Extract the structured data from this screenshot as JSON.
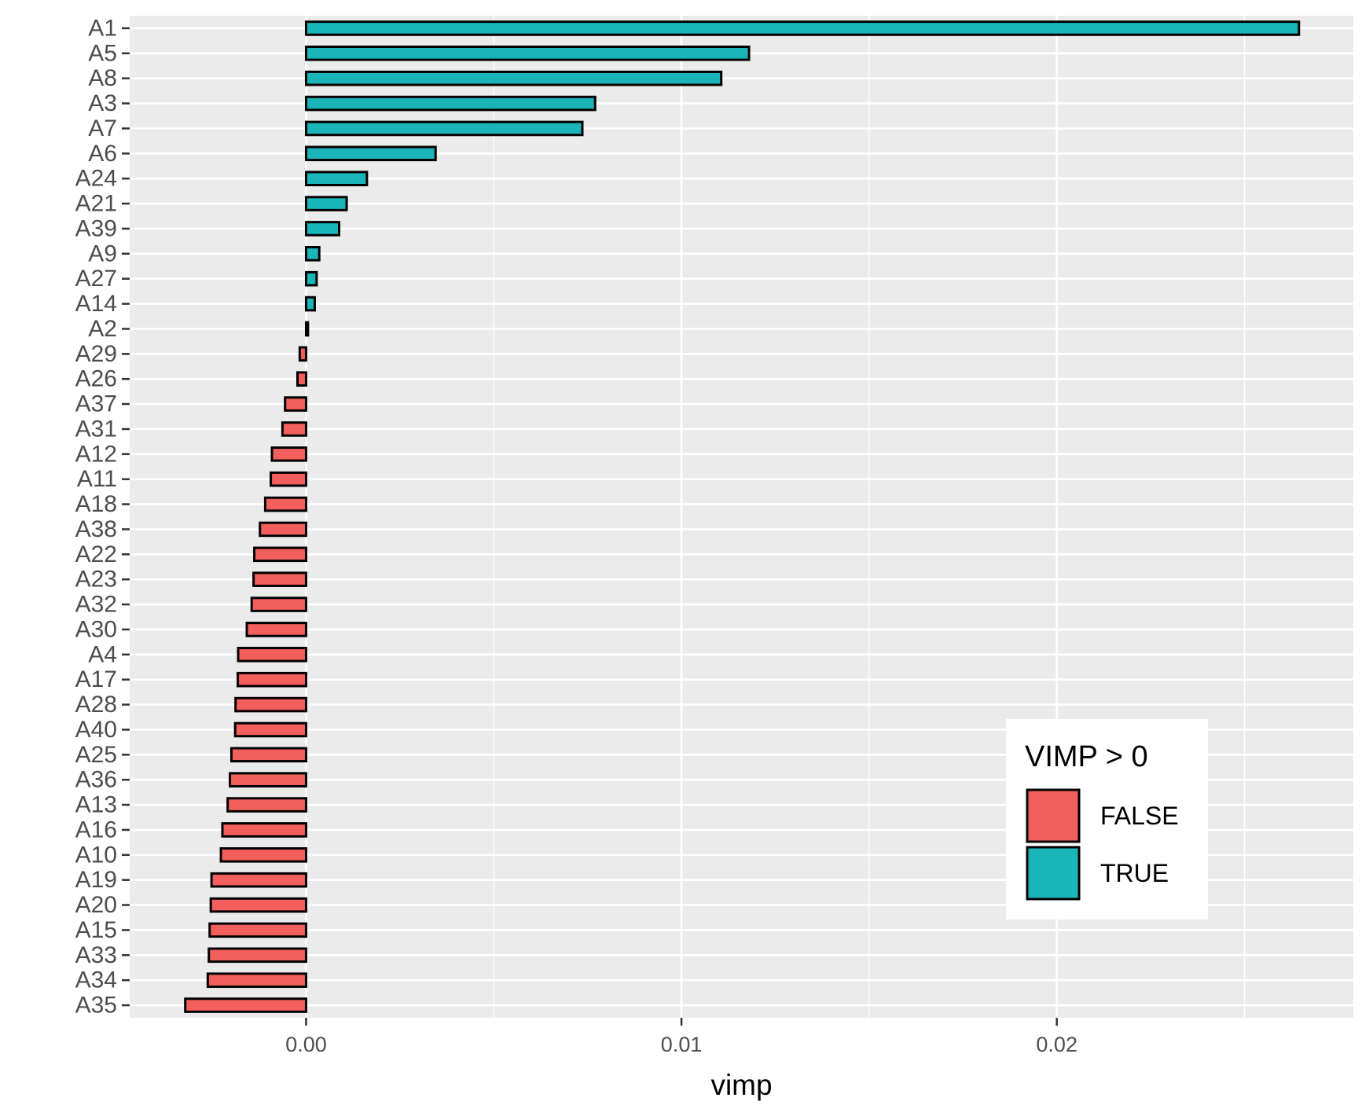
{
  "chart_data": {
    "type": "bar",
    "orientation": "horizontal",
    "title": "",
    "xlabel": "vimp",
    "ylabel": "",
    "xlim": [
      -0.0047,
      0.0279
    ],
    "x_ticks": [
      {
        "value": 0.0,
        "label": "0.00"
      },
      {
        "value": 0.01,
        "label": "0.01"
      },
      {
        "value": 0.02,
        "label": "0.02"
      }
    ],
    "x_minor_ticks": [
      -0.005,
      0.005,
      0.015,
      0.025
    ],
    "grid": true,
    "legend": {
      "title": "VIMP > 0",
      "placement": "bottom-right-inside",
      "entries": [
        {
          "label": "FALSE",
          "color": "#F8766D"
        },
        {
          "label": "TRUE",
          "color": "#00BFC4"
        }
      ]
    },
    "colors": {
      "TRUE": "#1AB5B8",
      "FALSE": "#F25F5C",
      "panel": "#EBEBEB",
      "grid": "#FFFFFF",
      "outline": "#000000"
    },
    "bars": [
      {
        "name": "A1",
        "value": 0.02645
      },
      {
        "name": "A5",
        "value": 0.0118
      },
      {
        "name": "A8",
        "value": 0.01106
      },
      {
        "name": "A3",
        "value": 0.0077
      },
      {
        "name": "A7",
        "value": 0.00736
      },
      {
        "name": "A6",
        "value": 0.00345
      },
      {
        "name": "A24",
        "value": 0.00162
      },
      {
        "name": "A21",
        "value": 0.00108
      },
      {
        "name": "A39",
        "value": 0.00088
      },
      {
        "name": "A9",
        "value": 0.00035
      },
      {
        "name": "A27",
        "value": 0.00028
      },
      {
        "name": "A14",
        "value": 0.00023
      },
      {
        "name": "A2",
        "value": 5e-05
      },
      {
        "name": "A29",
        "value": -0.00017
      },
      {
        "name": "A26",
        "value": -0.00023
      },
      {
        "name": "A37",
        "value": -0.00056
      },
      {
        "name": "A31",
        "value": -0.00063
      },
      {
        "name": "A12",
        "value": -0.00091
      },
      {
        "name": "A11",
        "value": -0.00094
      },
      {
        "name": "A18",
        "value": -0.00109
      },
      {
        "name": "A38",
        "value": -0.00123
      },
      {
        "name": "A22",
        "value": -0.00138
      },
      {
        "name": "A23",
        "value": -0.0014
      },
      {
        "name": "A32",
        "value": -0.00145
      },
      {
        "name": "A30",
        "value": -0.00158
      },
      {
        "name": "A4",
        "value": -0.00181
      },
      {
        "name": "A17",
        "value": -0.00182
      },
      {
        "name": "A28",
        "value": -0.00188
      },
      {
        "name": "A40",
        "value": -0.00189
      },
      {
        "name": "A25",
        "value": -0.00199
      },
      {
        "name": "A36",
        "value": -0.00203
      },
      {
        "name": "A13",
        "value": -0.00209
      },
      {
        "name": "A16",
        "value": -0.00223
      },
      {
        "name": "A10",
        "value": -0.00227
      },
      {
        "name": "A19",
        "value": -0.00252
      },
      {
        "name": "A20",
        "value": -0.00254
      },
      {
        "name": "A15",
        "value": -0.00257
      },
      {
        "name": "A33",
        "value": -0.00259
      },
      {
        "name": "A34",
        "value": -0.00262
      },
      {
        "name": "A35",
        "value": -0.00322
      }
    ]
  }
}
